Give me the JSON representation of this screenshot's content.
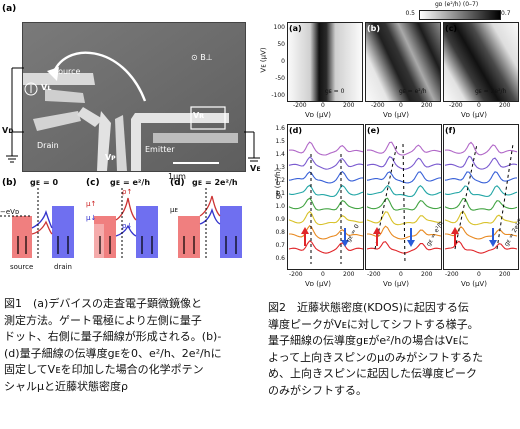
{
  "fig1": {
    "panels": {
      "a": "(a)",
      "b": "(b)",
      "c": "(c)",
      "d": "(d)"
    },
    "sem_labels": {
      "source": "Source",
      "vl": "Vʟ",
      "vd_box": "Vᴅ",
      "vr": "Vʀ",
      "drain": "Drain",
      "emitter": "Emitter",
      "vp": "Vᴘ",
      "bfield": "⊙ B⊥",
      "scale": "1µm"
    },
    "ext_labels": {
      "vd": "Vᴅ",
      "ve": "Vᴇ"
    },
    "energy": {
      "b_title": "gᴇ = 0",
      "c_title": "gᴇ = e²/h",
      "d_title": "gᴇ = 2e²/h",
      "ev": "−eVᴅ",
      "mu_up": "µ↑",
      "mu_dn": "µ↓",
      "mu_e": "µᴇ",
      "rho_up": "ρ↑",
      "rho_dn": "ρ↓",
      "source": "source",
      "drain": "drain"
    },
    "caption": [
      "図1　(a)デバイスの走査電子顕微鏡像と",
      "測定方法。ゲート電極により左側に量子",
      "ドット、右側に量子細線が形成される。(b)-",
      "(d)量子細線の伝導度gᴇを0、e²/h、2e²/hに",
      "固定してVᴇを印加した場合の化学ポテン",
      "シャルµと近藤状態密度ρ"
    ]
  },
  "fig2": {
    "colorbar": {
      "label": "gᴅ (e²/h) (0–7)",
      "min": "0.5",
      "max": "0.7"
    },
    "top_panels": [
      {
        "tag": "(a)",
        "ge": "gᴇ = 0"
      },
      {
        "tag": "(b)",
        "ge": "gᴇ = e²/h"
      },
      {
        "tag": "(c)",
        "ge": "gᴇ = 2e²/h"
      }
    ],
    "bottom_panels": [
      {
        "tag": "(d)",
        "ge": "gᴇ = 0"
      },
      {
        "tag": "(e)",
        "ge": "gᴇ = e²/h"
      },
      {
        "tag": "(f)",
        "ge": "gᴇ = 2e²/h"
      }
    ],
    "top_ylabel": "Vᴇ (µV)",
    "top_yticks": [
      "100",
      "50",
      "0",
      "-50",
      "-100"
    ],
    "bot_ylabel": "gᴅ (e²/h)",
    "bot_yticks": [
      "1.6",
      "1.5",
      "1.4",
      "1.3",
      "1.2",
      "1.1",
      "1.0",
      "0.9",
      "0.8",
      "0.7",
      "0.6"
    ],
    "xticks": [
      "-200",
      "0",
      "200"
    ],
    "xlabel": "Vᴅ (µV)",
    "curve_colors": [
      "#e0262a",
      "#e88a22",
      "#d8c22a",
      "#43a443",
      "#23a6a6",
      "#3a62d8",
      "#7b5bd0",
      "#b168c8"
    ],
    "caption": [
      "図2　近藤状態密度(KDOS)に起因する伝",
      "導度ピークがVᴇに対してシフトする様子。",
      "量子細線の伝導度gᴇがe²/hの場合はVᴇに",
      "よって上向きスピンのµのみがシフトするた",
      "め、上向きスピンに起因した伝導度ピーク",
      "のみがシフトする。"
    ]
  }
}
